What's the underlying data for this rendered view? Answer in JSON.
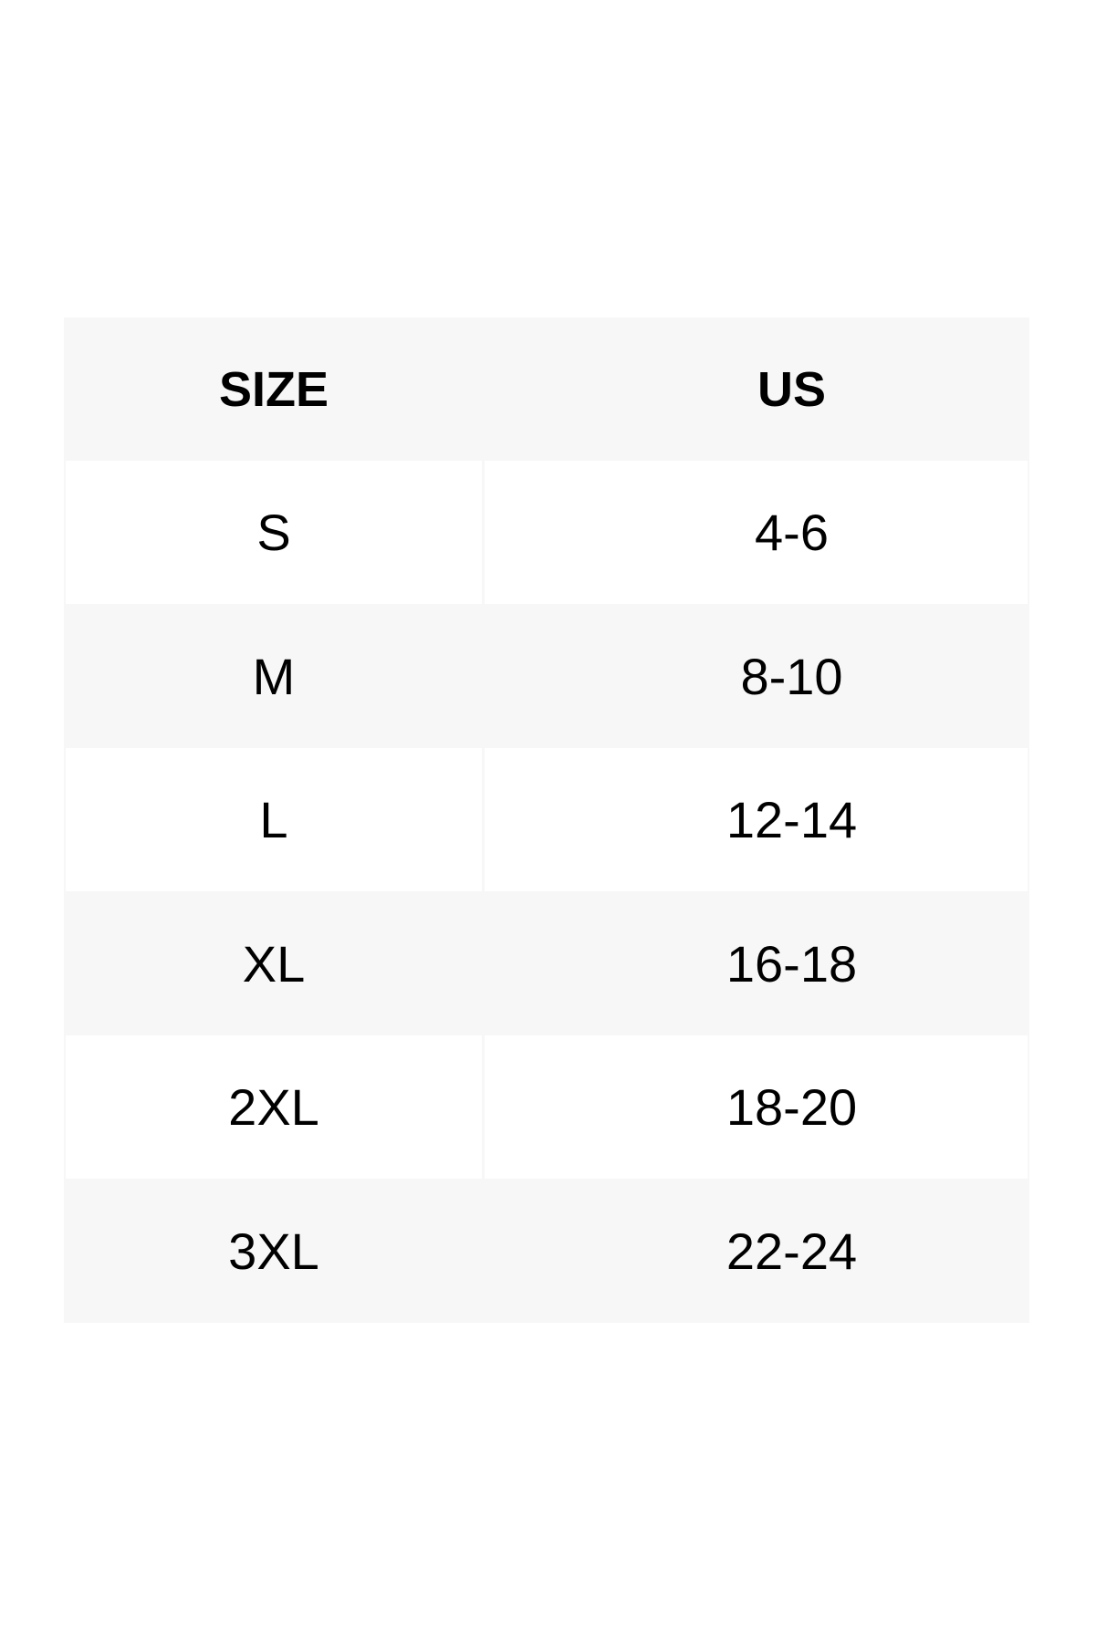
{
  "table": {
    "headers": [
      "SIZE",
      "US"
    ],
    "rows": [
      [
        "S",
        "4-6"
      ],
      [
        "M",
        "8-10"
      ],
      [
        "L",
        "12-14"
      ],
      [
        "XL",
        "16-18"
      ],
      [
        "2XL",
        "18-20"
      ],
      [
        "3XL",
        "22-24"
      ]
    ]
  },
  "colors": {
    "stripe": "#f7f7f7",
    "background": "#ffffff",
    "text": "#000000"
  }
}
